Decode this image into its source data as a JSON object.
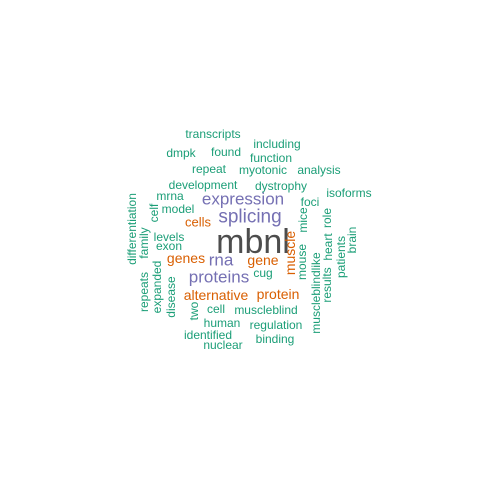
{
  "colors": {
    "green": "#1b9e77",
    "orange": "#d95f02",
    "purple": "#7570b3",
    "dark_gray": "#4d4d4d"
  },
  "words": [
    {
      "text": "mbnl",
      "group": "dark_gray"
    },
    {
      "text": "splicing",
      "group": "purple"
    },
    {
      "text": "expression",
      "group": "purple"
    },
    {
      "text": "proteins",
      "group": "purple"
    },
    {
      "text": "rna",
      "group": "purple"
    },
    {
      "text": "alternative",
      "group": "orange"
    },
    {
      "text": "muscle",
      "group": "orange"
    },
    {
      "text": "gene",
      "group": "orange"
    },
    {
      "text": "genes",
      "group": "orange"
    },
    {
      "text": "protein",
      "group": "orange"
    },
    {
      "text": "cells",
      "group": "orange"
    },
    {
      "text": "transcripts",
      "group": "green"
    },
    {
      "text": "including",
      "group": "green"
    },
    {
      "text": "dmpk",
      "group": "green"
    },
    {
      "text": "found",
      "group": "green"
    },
    {
      "text": "function",
      "group": "green"
    },
    {
      "text": "repeat",
      "group": "green"
    },
    {
      "text": "myotonic",
      "group": "green"
    },
    {
      "text": "analysis",
      "group": "green"
    },
    {
      "text": "development",
      "group": "green"
    },
    {
      "text": "dystrophy",
      "group": "green"
    },
    {
      "text": "isoforms",
      "group": "green"
    },
    {
      "text": "mrna",
      "group": "green"
    },
    {
      "text": "foci",
      "group": "green"
    },
    {
      "text": "model",
      "group": "green"
    },
    {
      "text": "levels",
      "group": "green"
    },
    {
      "text": "exon",
      "group": "green"
    },
    {
      "text": "cug",
      "group": "green"
    },
    {
      "text": "cell",
      "group": "green"
    },
    {
      "text": "muscleblind",
      "group": "green"
    },
    {
      "text": "human",
      "group": "green"
    },
    {
      "text": "regulation",
      "group": "green"
    },
    {
      "text": "identified",
      "group": "green"
    },
    {
      "text": "binding",
      "group": "green"
    },
    {
      "text": "nuclear",
      "group": "green"
    },
    {
      "text": "differentiation",
      "group": "green"
    },
    {
      "text": "family",
      "group": "green"
    },
    {
      "text": "celf",
      "group": "green"
    },
    {
      "text": "repeats",
      "group": "green"
    },
    {
      "text": "expanded",
      "group": "green"
    },
    {
      "text": "disease",
      "group": "green"
    },
    {
      "text": "two",
      "group": "green"
    },
    {
      "text": "mice",
      "group": "green"
    },
    {
      "text": "mouse",
      "group": "green"
    },
    {
      "text": "muscleblindlike",
      "group": "green"
    },
    {
      "text": "results",
      "group": "green"
    },
    {
      "text": "role",
      "group": "green"
    },
    {
      "text": "heart",
      "group": "green"
    },
    {
      "text": "patients",
      "group": "green"
    },
    {
      "text": "brain",
      "group": "green"
    }
  ]
}
